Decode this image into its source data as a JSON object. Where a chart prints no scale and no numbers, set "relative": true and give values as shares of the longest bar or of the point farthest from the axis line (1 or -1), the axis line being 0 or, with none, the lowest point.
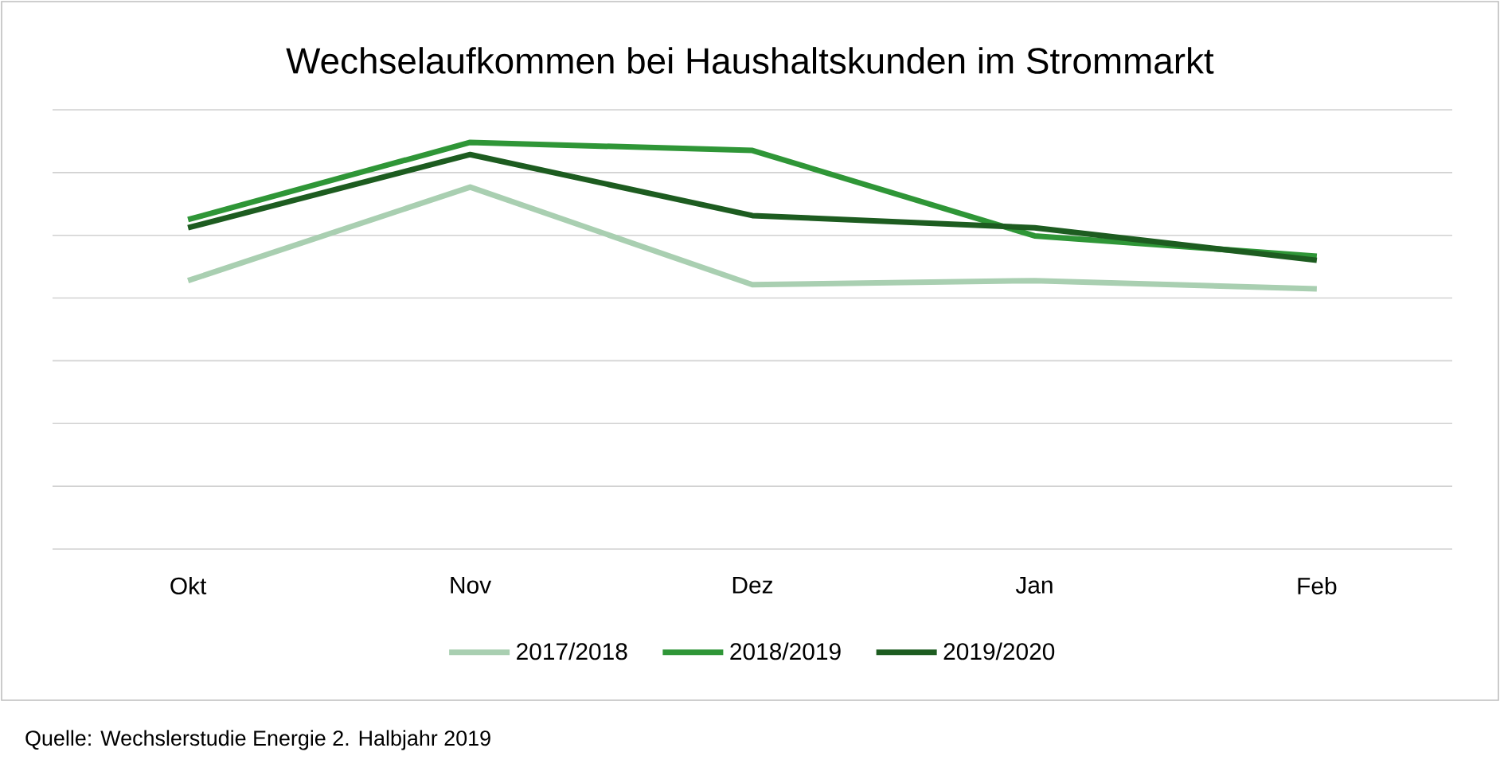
{
  "chart_data": {
    "type": "line",
    "title": "Wechselaufkommen bei Haushaltskunden im Strommarkt",
    "categories": [
      "Okt",
      "Nov",
      "Dez",
      "Jan",
      "Feb"
    ],
    "series": [
      {
        "name": "2017/2018",
        "color": "#a9cfb1",
        "values": [
          0.66,
          0.89,
          0.65,
          0.66,
          0.64
        ]
      },
      {
        "name": "2018/2019",
        "color": "#2f9637",
        "values": [
          0.81,
          1.0,
          0.98,
          0.77,
          0.72
        ]
      },
      {
        "name": "2019/2020",
        "color": "#1d5c20",
        "values": [
          0.79,
          0.97,
          0.82,
          0.79,
          0.71
        ]
      }
    ],
    "relative": true,
    "grid": "y",
    "legend": "bottom",
    "annotations": [
      "Quelle: Wechslerstudie Energie 2. Halbjahr 2019"
    ]
  }
}
